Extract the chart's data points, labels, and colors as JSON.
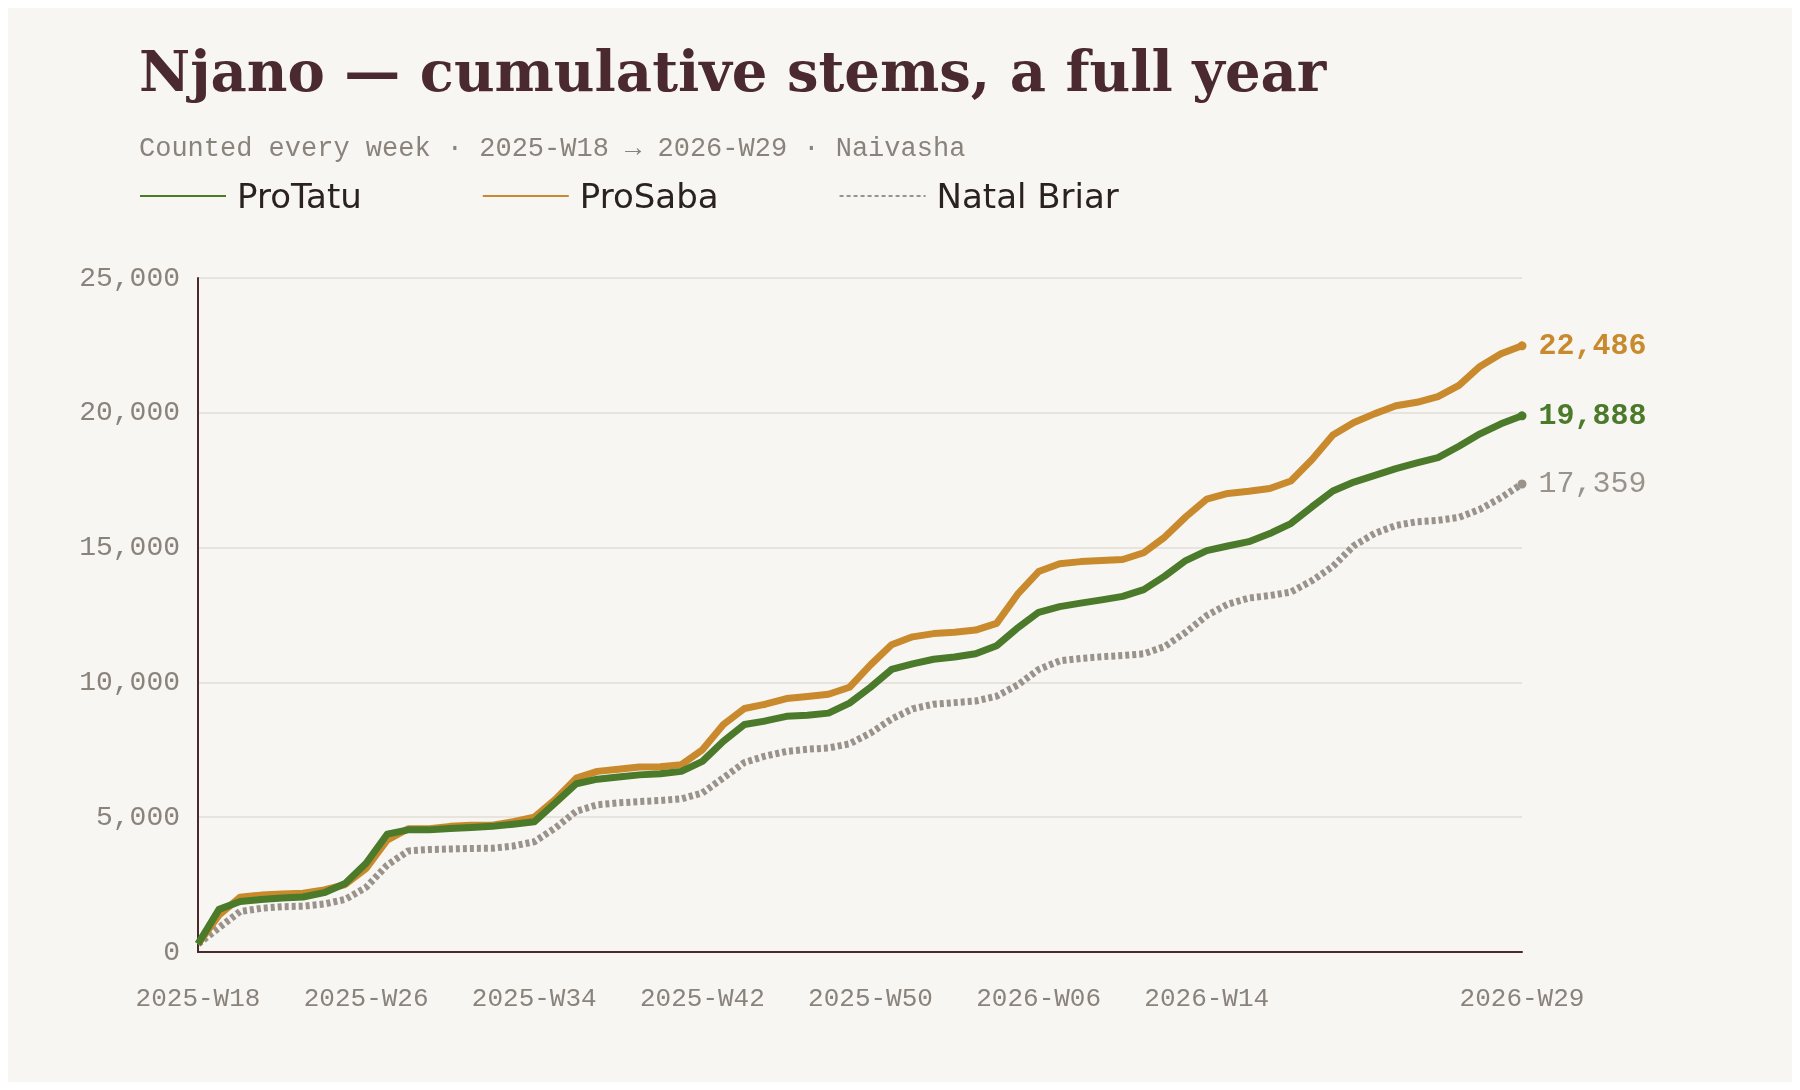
{
  "chart_data": {
    "type": "line",
    "title": "Njano — cumulative stems, a full year",
    "subtitle": "Counted every week · 2025-W18 → 2026-W29 · Naivasha",
    "categories": [
      "2025-W18",
      null,
      null,
      null,
      null,
      null,
      null,
      null,
      "2025-W26",
      null,
      null,
      null,
      null,
      null,
      null,
      null,
      "2025-W34",
      null,
      null,
      null,
      null,
      null,
      null,
      null,
      "2025-W42",
      null,
      null,
      null,
      null,
      null,
      null,
      null,
      "2025-W50",
      null,
      null,
      null,
      null,
      null,
      null,
      null,
      "2026-W06",
      null,
      null,
      null,
      null,
      null,
      null,
      null,
      "2026-W14",
      null,
      null,
      null,
      null,
      null,
      null,
      null,
      null,
      null,
      null,
      null,
      null,
      null,
      null,
      "2026-W29"
    ],
    "series": [
      {
        "name": "ProTatu",
        "color": "#4a7a2a",
        "line_style": "solid",
        "values": [
          300,
          1580,
          1870,
          1950,
          2000,
          2040,
          2200,
          2540,
          3290,
          4370,
          4530,
          4530,
          4580,
          4620,
          4660,
          4740,
          4830,
          5530,
          6240,
          6410,
          6490,
          6570,
          6610,
          6700,
          7070,
          7820,
          8440,
          8570,
          8740,
          8780,
          8860,
          9230,
          9820,
          10480,
          10690,
          10860,
          10940,
          11060,
          11360,
          12020,
          12600,
          12810,
          12940,
          13060,
          13190,
          13440,
          13940,
          14520,
          14890,
          15060,
          15220,
          15520,
          15890,
          16510,
          17100,
          17430,
          17680,
          17930,
          18140,
          18340,
          18760,
          19220,
          19590,
          19888
        ],
        "value_labels": [
          null,
          null,
          null,
          null,
          null,
          null,
          null,
          null,
          null,
          null,
          null,
          null,
          null,
          null,
          null,
          null,
          null,
          null,
          null,
          null,
          null,
          null,
          null,
          null,
          null,
          null,
          null,
          null,
          null,
          null,
          null,
          null,
          null,
          null,
          null,
          null,
          null,
          null,
          null,
          null,
          null,
          null,
          null,
          null,
          null,
          null,
          null,
          null,
          null,
          null,
          null,
          null,
          null,
          null,
          null,
          null,
          null,
          null,
          null,
          null,
          null,
          null,
          null,
          "19,888"
        ]
      },
      {
        "name": "ProSaba",
        "color": "#c98a2e",
        "line_style": "solid",
        "values": [
          300,
          1370,
          2030,
          2110,
          2150,
          2180,
          2300,
          2500,
          3100,
          4150,
          4570,
          4570,
          4660,
          4700,
          4700,
          4830,
          5000,
          5660,
          6450,
          6700,
          6780,
          6860,
          6870,
          6950,
          7500,
          8440,
          9030,
          9190,
          9400,
          9480,
          9560,
          9820,
          10650,
          11400,
          11690,
          11810,
          11860,
          11940,
          12190,
          13270,
          14110,
          14400,
          14480,
          14520,
          14560,
          14810,
          15390,
          16140,
          16800,
          17010,
          17090,
          17190,
          17470,
          18260,
          19180,
          19640,
          19970,
          20260,
          20390,
          20600,
          21020,
          21720,
          22190,
          22486
        ],
        "value_labels": [
          null,
          null,
          null,
          null,
          null,
          null,
          null,
          null,
          null,
          null,
          null,
          null,
          null,
          null,
          null,
          null,
          null,
          null,
          null,
          null,
          null,
          null,
          null,
          null,
          null,
          null,
          null,
          null,
          null,
          null,
          null,
          null,
          null,
          null,
          null,
          null,
          null,
          null,
          null,
          null,
          null,
          null,
          null,
          null,
          null,
          null,
          null,
          null,
          null,
          null,
          null,
          null,
          null,
          null,
          null,
          null,
          null,
          null,
          null,
          null,
          null,
          null,
          null,
          "22,486"
        ]
      },
      {
        "name": "Natal Briar",
        "color": "#9a938c",
        "line_style": "dashed",
        "values": [
          300,
          900,
          1500,
          1620,
          1680,
          1700,
          1780,
          1950,
          2400,
          3220,
          3750,
          3800,
          3820,
          3840,
          3850,
          3930,
          4090,
          4600,
          5220,
          5460,
          5530,
          5580,
          5620,
          5680,
          5900,
          6460,
          7030,
          7270,
          7440,
          7520,
          7570,
          7720,
          8120,
          8640,
          9020,
          9190,
          9250,
          9310,
          9490,
          9900,
          10480,
          10800,
          10890,
          10950,
          11000,
          11060,
          11330,
          11860,
          12480,
          12900,
          13130,
          13220,
          13350,
          13770,
          14300,
          15070,
          15530,
          15820,
          15960,
          16010,
          16120,
          16420,
          16850,
          17359
        ],
        "value_labels": [
          null,
          null,
          null,
          null,
          null,
          null,
          null,
          null,
          null,
          null,
          null,
          null,
          null,
          null,
          null,
          null,
          null,
          null,
          null,
          null,
          null,
          null,
          null,
          null,
          null,
          null,
          null,
          null,
          null,
          null,
          null,
          null,
          null,
          null,
          null,
          null,
          null,
          null,
          null,
          null,
          null,
          null,
          null,
          null,
          null,
          null,
          null,
          null,
          null,
          null,
          null,
          null,
          null,
          null,
          null,
          null,
          null,
          null,
          null,
          null,
          null,
          null,
          null,
          "17,359"
        ]
      }
    ],
    "ylim": [
      0,
      25000
    ],
    "yticks": [
      {
        "value": 0,
        "label": "0"
      },
      {
        "value": 5000,
        "label": "5,000"
      },
      {
        "value": 10000,
        "label": "10,000"
      },
      {
        "value": 15000,
        "label": "15,000"
      },
      {
        "value": 20000,
        "label": "20,000"
      },
      {
        "value": 25000,
        "label": "25,000"
      }
    ],
    "grid": "y",
    "legend": "top left"
  }
}
